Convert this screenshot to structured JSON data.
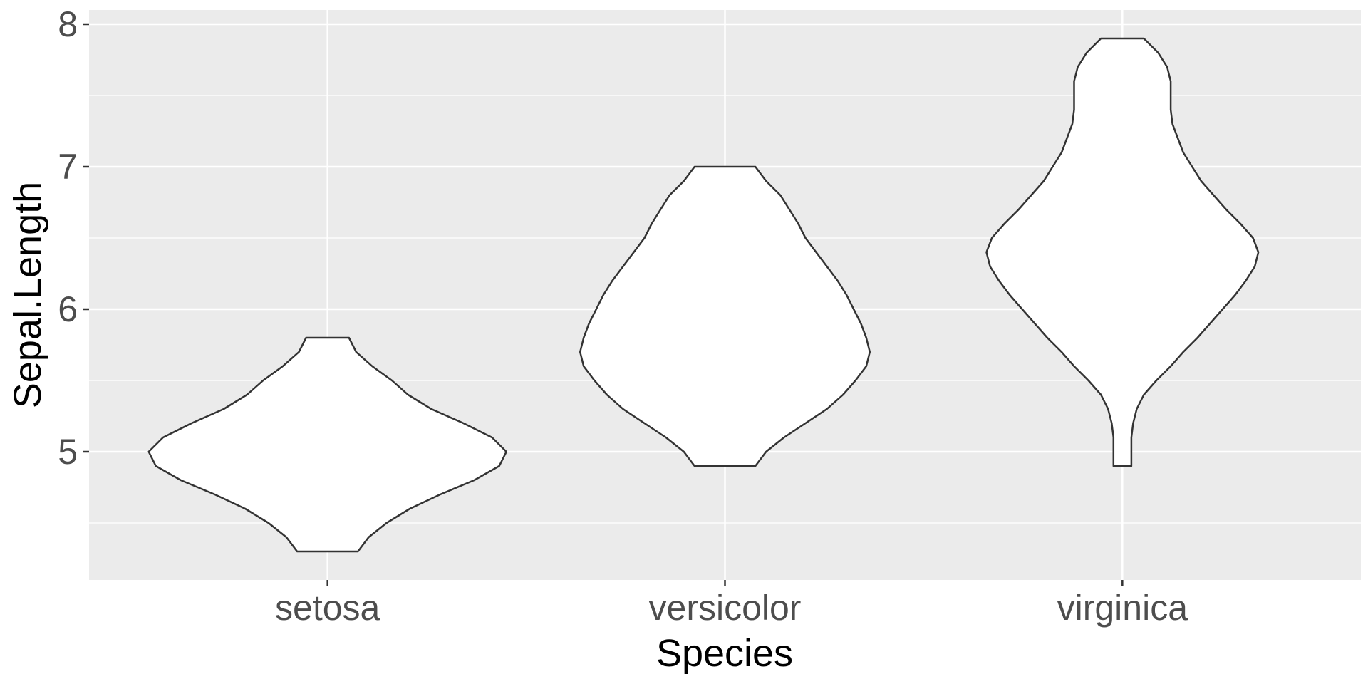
{
  "chart_data": {
    "type": "violin",
    "xlabel": "Species",
    "ylabel": "Sepal.Length",
    "categories": [
      "setosa",
      "versicolor",
      "virginica"
    ],
    "ylim": [
      4.1,
      8.1
    ],
    "yticks": [
      5,
      6,
      7,
      8
    ],
    "yminor": [
      4.5,
      5.5,
      6.5,
      7.5
    ],
    "grid": true,
    "colors": {
      "panel": "#EBEBEB",
      "grid": "#FFFFFF",
      "fill": "#FFFFFF",
      "outline": "#333333",
      "tick_text": "#4D4D4D"
    },
    "series": [
      {
        "category": "setosa",
        "min": 4.3,
        "max": 5.8,
        "profile": [
          [
            4.3,
            0.17
          ],
          [
            4.4,
            0.23
          ],
          [
            4.5,
            0.33
          ],
          [
            4.6,
            0.46
          ],
          [
            4.7,
            0.63
          ],
          [
            4.8,
            0.82
          ],
          [
            4.9,
            0.96
          ],
          [
            5.0,
            1.0
          ],
          [
            5.1,
            0.92
          ],
          [
            5.2,
            0.76
          ],
          [
            5.3,
            0.58
          ],
          [
            5.4,
            0.45
          ],
          [
            5.5,
            0.36
          ],
          [
            5.6,
            0.25
          ],
          [
            5.7,
            0.16
          ],
          [
            5.8,
            0.12
          ]
        ]
      },
      {
        "category": "versicolor",
        "min": 4.9,
        "max": 7.0,
        "profile": [
          [
            4.9,
            0.17
          ],
          [
            5.0,
            0.23
          ],
          [
            5.1,
            0.33
          ],
          [
            5.2,
            0.45
          ],
          [
            5.3,
            0.57
          ],
          [
            5.4,
            0.66
          ],
          [
            5.5,
            0.73
          ],
          [
            5.6,
            0.79
          ],
          [
            5.7,
            0.81
          ],
          [
            5.8,
            0.79
          ],
          [
            5.9,
            0.76
          ],
          [
            6.0,
            0.72
          ],
          [
            6.1,
            0.68
          ],
          [
            6.2,
            0.63
          ],
          [
            6.3,
            0.57
          ],
          [
            6.4,
            0.51
          ],
          [
            6.5,
            0.45
          ],
          [
            6.6,
            0.41
          ],
          [
            6.7,
            0.36
          ],
          [
            6.8,
            0.31
          ],
          [
            6.9,
            0.23
          ],
          [
            7.0,
            0.17
          ]
        ]
      },
      {
        "category": "virginica",
        "min": 4.9,
        "max": 7.9,
        "profile": [
          [
            4.9,
            0.05
          ],
          [
            5.0,
            0.05
          ],
          [
            5.1,
            0.05
          ],
          [
            5.2,
            0.06
          ],
          [
            5.3,
            0.08
          ],
          [
            5.4,
            0.12
          ],
          [
            5.5,
            0.19
          ],
          [
            5.6,
            0.27
          ],
          [
            5.7,
            0.34
          ],
          [
            5.8,
            0.42
          ],
          [
            5.9,
            0.49
          ],
          [
            6.0,
            0.56
          ],
          [
            6.1,
            0.63
          ],
          [
            6.2,
            0.69
          ],
          [
            6.3,
            0.74
          ],
          [
            6.4,
            0.76
          ],
          [
            6.5,
            0.73
          ],
          [
            6.6,
            0.66
          ],
          [
            6.7,
            0.58
          ],
          [
            6.8,
            0.51
          ],
          [
            6.9,
            0.44
          ],
          [
            7.0,
            0.39
          ],
          [
            7.1,
            0.34
          ],
          [
            7.2,
            0.31
          ],
          [
            7.3,
            0.28
          ],
          [
            7.4,
            0.27
          ],
          [
            7.5,
            0.27
          ],
          [
            7.6,
            0.27
          ],
          [
            7.7,
            0.25
          ],
          [
            7.8,
            0.2
          ],
          [
            7.9,
            0.12
          ]
        ]
      }
    ]
  }
}
